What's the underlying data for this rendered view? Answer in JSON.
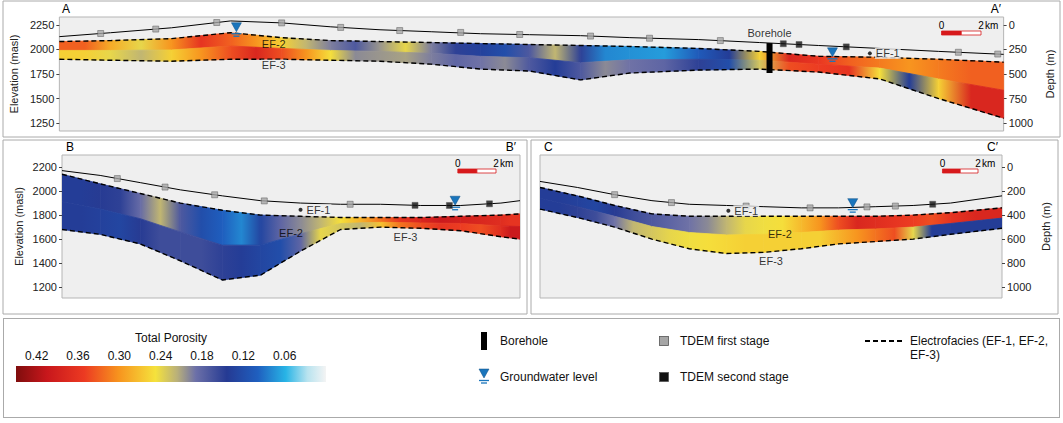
{
  "chart_data": [
    {
      "type": "section",
      "labels": [
        "A",
        "A′"
      ],
      "xlim": [
        0,
        48
      ],
      "x": [
        0,
        2.6,
        5.7,
        8.7,
        11.3,
        13.8,
        16.3,
        18.9,
        21.4,
        23.9,
        26.5,
        29,
        32.5,
        35.6,
        38.6,
        41.7,
        44.7,
        48
      ],
      "surface": {
        "line_style": "solid",
        "values": [
          2130,
          2170,
          2220,
          2290,
          2270,
          2230,
          2200,
          2180,
          2160,
          2150,
          2140,
          2120,
          2100,
          2070,
          2040,
          2010,
          1980,
          1950
        ]
      },
      "ef_top": {
        "line_style": "dashed",
        "values": [
          2080,
          2090,
          2110,
          2170,
          2120,
          2090,
          2080,
          2070,
          2060,
          2050,
          2040,
          2030,
          2010,
          1980,
          1930,
          1920,
          1900,
          1870
        ]
      },
      "ef_bottom": {
        "line_style": "dashed",
        "values": [
          1900,
          1890,
          1880,
          1900,
          1900,
          1890,
          1880,
          1850,
          1800,
          1780,
          1690,
          1760,
          1790,
          1800,
          1770,
          1700,
          1500,
          1300
        ]
      },
      "porosity": [
        [
          0.33,
          0.26
        ],
        [
          0.24,
          0.22
        ],
        [
          0.36,
          0.3
        ],
        [
          0.3,
          0.38
        ],
        [
          0.22,
          0.3
        ],
        [
          0.17,
          0.2
        ],
        [
          0.24,
          0.21
        ],
        [
          0.15,
          0.18
        ],
        [
          0.12,
          0.2
        ],
        [
          0.22,
          0.14
        ],
        [
          0.08,
          0.2
        ],
        [
          0.07,
          0.18
        ],
        [
          0.14,
          0.12
        ],
        [
          0.38,
          0.34
        ],
        [
          0.33,
          0.36
        ],
        [
          0.3,
          0.14
        ],
        [
          0.33,
          0.38
        ]
      ],
      "ylim": [
        1170,
        2330
      ],
      "yticks": [
        1250,
        1500,
        1750,
        2000,
        2250
      ],
      "y_label": "Elevation (masl)",
      "y2lim": [
        1080,
        -80
      ],
      "y2ticks": [
        0,
        250,
        500,
        750,
        1000
      ],
      "y2_label": "Depth (m)",
      "groundwater": [
        [
          9.0,
          2180
        ],
        [
          39.3,
          1925
        ]
      ],
      "borehole": [
        [
          36.1,
          2065,
          1760
        ]
      ],
      "tdem_first": [
        [
          2.1,
          2162
        ],
        [
          4.9,
          2207
        ],
        [
          8.0,
          2274
        ],
        [
          11.3,
          2270
        ],
        [
          14.3,
          2224
        ],
        [
          17.3,
          2192
        ],
        [
          20.4,
          2173
        ],
        [
          23.4,
          2152
        ],
        [
          27.0,
          2136
        ],
        [
          30.0,
          2114
        ],
        [
          33.6,
          2090
        ],
        [
          45.7,
          1971
        ],
        [
          47.7,
          1953
        ]
      ],
      "tdem_second": [
        [
          36.8,
          2058
        ],
        [
          37.6,
          2050
        ],
        [
          40.0,
          2026
        ]
      ],
      "annotations": [
        {
          "text": "EF-2",
          "x": 10.9,
          "y": 2055
        },
        {
          "text": "EF-3",
          "x": 10.9,
          "y": 1840
        },
        {
          "text": "EF-1",
          "x": 41.2,
          "y": 1960,
          "marker": "dot"
        },
        {
          "text": "Borehole",
          "x": 36.1,
          "y": 2170
        }
      ],
      "scale_bar": {
        "length": 2,
        "labels": [
          "0",
          "2"
        ],
        "unit": "km"
      }
    },
    {
      "type": "section",
      "labels": [
        "B",
        "B′"
      ],
      "xlim": [
        0,
        24
      ],
      "x": [
        0,
        2.0,
        4.1,
        6.2,
        8.4,
        10.4,
        12.5,
        14.6,
        16.7,
        18.8,
        20.9,
        23.0,
        24
      ],
      "surface": {
        "line_style": "solid",
        "values": [
          2170,
          2130,
          2070,
          2010,
          1960,
          1920,
          1900,
          1890,
          1890,
          1880,
          1880,
          1900,
          1920
        ]
      },
      "ef_top": {
        "line_style": "dashed",
        "values": [
          2140,
          2060,
          1980,
          1900,
          1840,
          1800,
          1790,
          1780,
          1780,
          1780,
          1790,
          1800,
          1810
        ]
      },
      "ef_bottom": {
        "line_style": "dashed",
        "values": [
          1680,
          1640,
          1560,
          1420,
          1260,
          1300,
          1500,
          1680,
          1700,
          1690,
          1670,
          1620,
          1600
        ]
      },
      "porosity": [
        [
          0.14,
          0.14
        ],
        [
          0.15,
          0.13
        ],
        [
          0.22,
          0.16
        ],
        [
          0.12,
          0.16
        ],
        [
          0.08,
          0.14
        ],
        [
          0.18,
          0.12
        ],
        [
          0.22,
          0.24
        ],
        [
          0.28,
          0.22
        ],
        [
          0.36,
          0.32
        ],
        [
          0.4,
          0.36
        ],
        [
          0.38,
          0.34
        ],
        [
          0.36,
          0.4
        ]
      ],
      "ylim": [
        1110,
        2300
      ],
      "yticks": [
        1200,
        1400,
        1600,
        1800,
        2000,
        2200
      ],
      "y_label": "Elevation (masl)",
      "groundwater": [
        [
          20.6,
          1882
        ]
      ],
      "tdem_first": [
        [
          2.9,
          2104
        ],
        [
          5.4,
          2033
        ],
        [
          8.0,
          1969
        ],
        [
          10.6,
          1918
        ],
        [
          15.1,
          1890
        ]
      ],
      "tdem_second": [
        [
          18.5,
          1881
        ],
        [
          20.3,
          1880
        ],
        [
          22.4,
          1894
        ]
      ],
      "annotations": [
        {
          "text": "EF-1",
          "x": 12.5,
          "y": 1845,
          "marker": "dot"
        },
        {
          "text": "EF-2",
          "x": 12.0,
          "y": 1650
        },
        {
          "text": "EF-3",
          "x": 18.0,
          "y": 1615
        }
      ],
      "scale_bar": {
        "length": 2,
        "labels": [
          "0",
          "2"
        ],
        "unit": "km"
      }
    },
    {
      "type": "section",
      "labels": [
        "C",
        "C′"
      ],
      "xlim": [
        0,
        26
      ],
      "x": [
        0,
        2.1,
        4.2,
        6.3,
        8.4,
        10.5,
        12.6,
        14.7,
        16.8,
        18.9,
        21.0,
        23.1,
        26
      ],
      "surface": {
        "line_style": "solid",
        "values": [
          2080,
          2030,
          1970,
          1920,
          1890,
          1880,
          1870,
          1860,
          1860,
          1870,
          1880,
          1900,
          1960
        ]
      },
      "ef_top": {
        "line_style": "dashed",
        "values": [
          2030,
          1960,
          1880,
          1810,
          1790,
          1790,
          1790,
          1790,
          1790,
          1790,
          1800,
          1820,
          1860
        ]
      },
      "ef_bottom": {
        "line_style": "dashed",
        "values": [
          1850,
          1780,
          1700,
          1600,
          1520,
          1480,
          1490,
          1520,
          1560,
          1580,
          1600,
          1640,
          1690
        ]
      },
      "porosity": [
        [
          0.14,
          0.14
        ],
        [
          0.13,
          0.16
        ],
        [
          0.16,
          0.22
        ],
        [
          0.18,
          0.24
        ],
        [
          0.2,
          0.25
        ],
        [
          0.24,
          0.26
        ],
        [
          0.25,
          0.26
        ],
        [
          0.3,
          0.26
        ],
        [
          0.38,
          0.3
        ],
        [
          0.36,
          0.34
        ],
        [
          0.34,
          0.14
        ],
        [
          0.38,
          0.14
        ]
      ],
      "ylim": [
        1110,
        2300
      ],
      "y2lim": [
        1090,
        -100
      ],
      "y2ticks": [
        0,
        200,
        400,
        600,
        800,
        1000
      ],
      "y2_label": "Depth (m)",
      "groundwater": [
        [
          17.6,
          1862
        ]
      ],
      "tdem_first": [
        [
          4.2,
          1970
        ],
        [
          7.4,
          1904
        ],
        [
          11.6,
          1875
        ],
        [
          15.2,
          1860
        ],
        [
          18.4,
          1868
        ],
        [
          20.0,
          1875
        ]
      ],
      "tdem_second": [
        [
          22.1,
          1890
        ]
      ],
      "annotations": [
        {
          "text": "EF-1",
          "x": 10.6,
          "y": 1836,
          "marker": "dot"
        },
        {
          "text": "EF-2",
          "x": 13.5,
          "y": 1640
        },
        {
          "text": "EF-3",
          "x": 13.0,
          "y": 1420
        }
      ],
      "scale_bar": {
        "length": 2,
        "labels": [
          "0",
          "2"
        ],
        "unit": "km"
      }
    }
  ],
  "color_bar": {
    "title": "Total Porosity",
    "range": [
      0.45,
      0
    ],
    "ticks": [
      0.42,
      0.36,
      {
        "value": 0.3,
        "label": "0.30"
      },
      0.24,
      0.18,
      0.12,
      0.06
    ]
  },
  "legend_items": [
    {
      "label": "Borehole",
      "marker": "borehole"
    },
    {
      "label": "Groundwater level",
      "marker": "groundwater"
    },
    {
      "label": "TDEM first stage",
      "marker": "square",
      "color": "#a6a6a6"
    },
    {
      "label": "TDEM second stage",
      "marker": "square",
      "color": "#111111"
    },
    {
      "label": "Electrofacies (EF-1, EF-2, EF-3)",
      "line_style": "dashed"
    }
  ]
}
